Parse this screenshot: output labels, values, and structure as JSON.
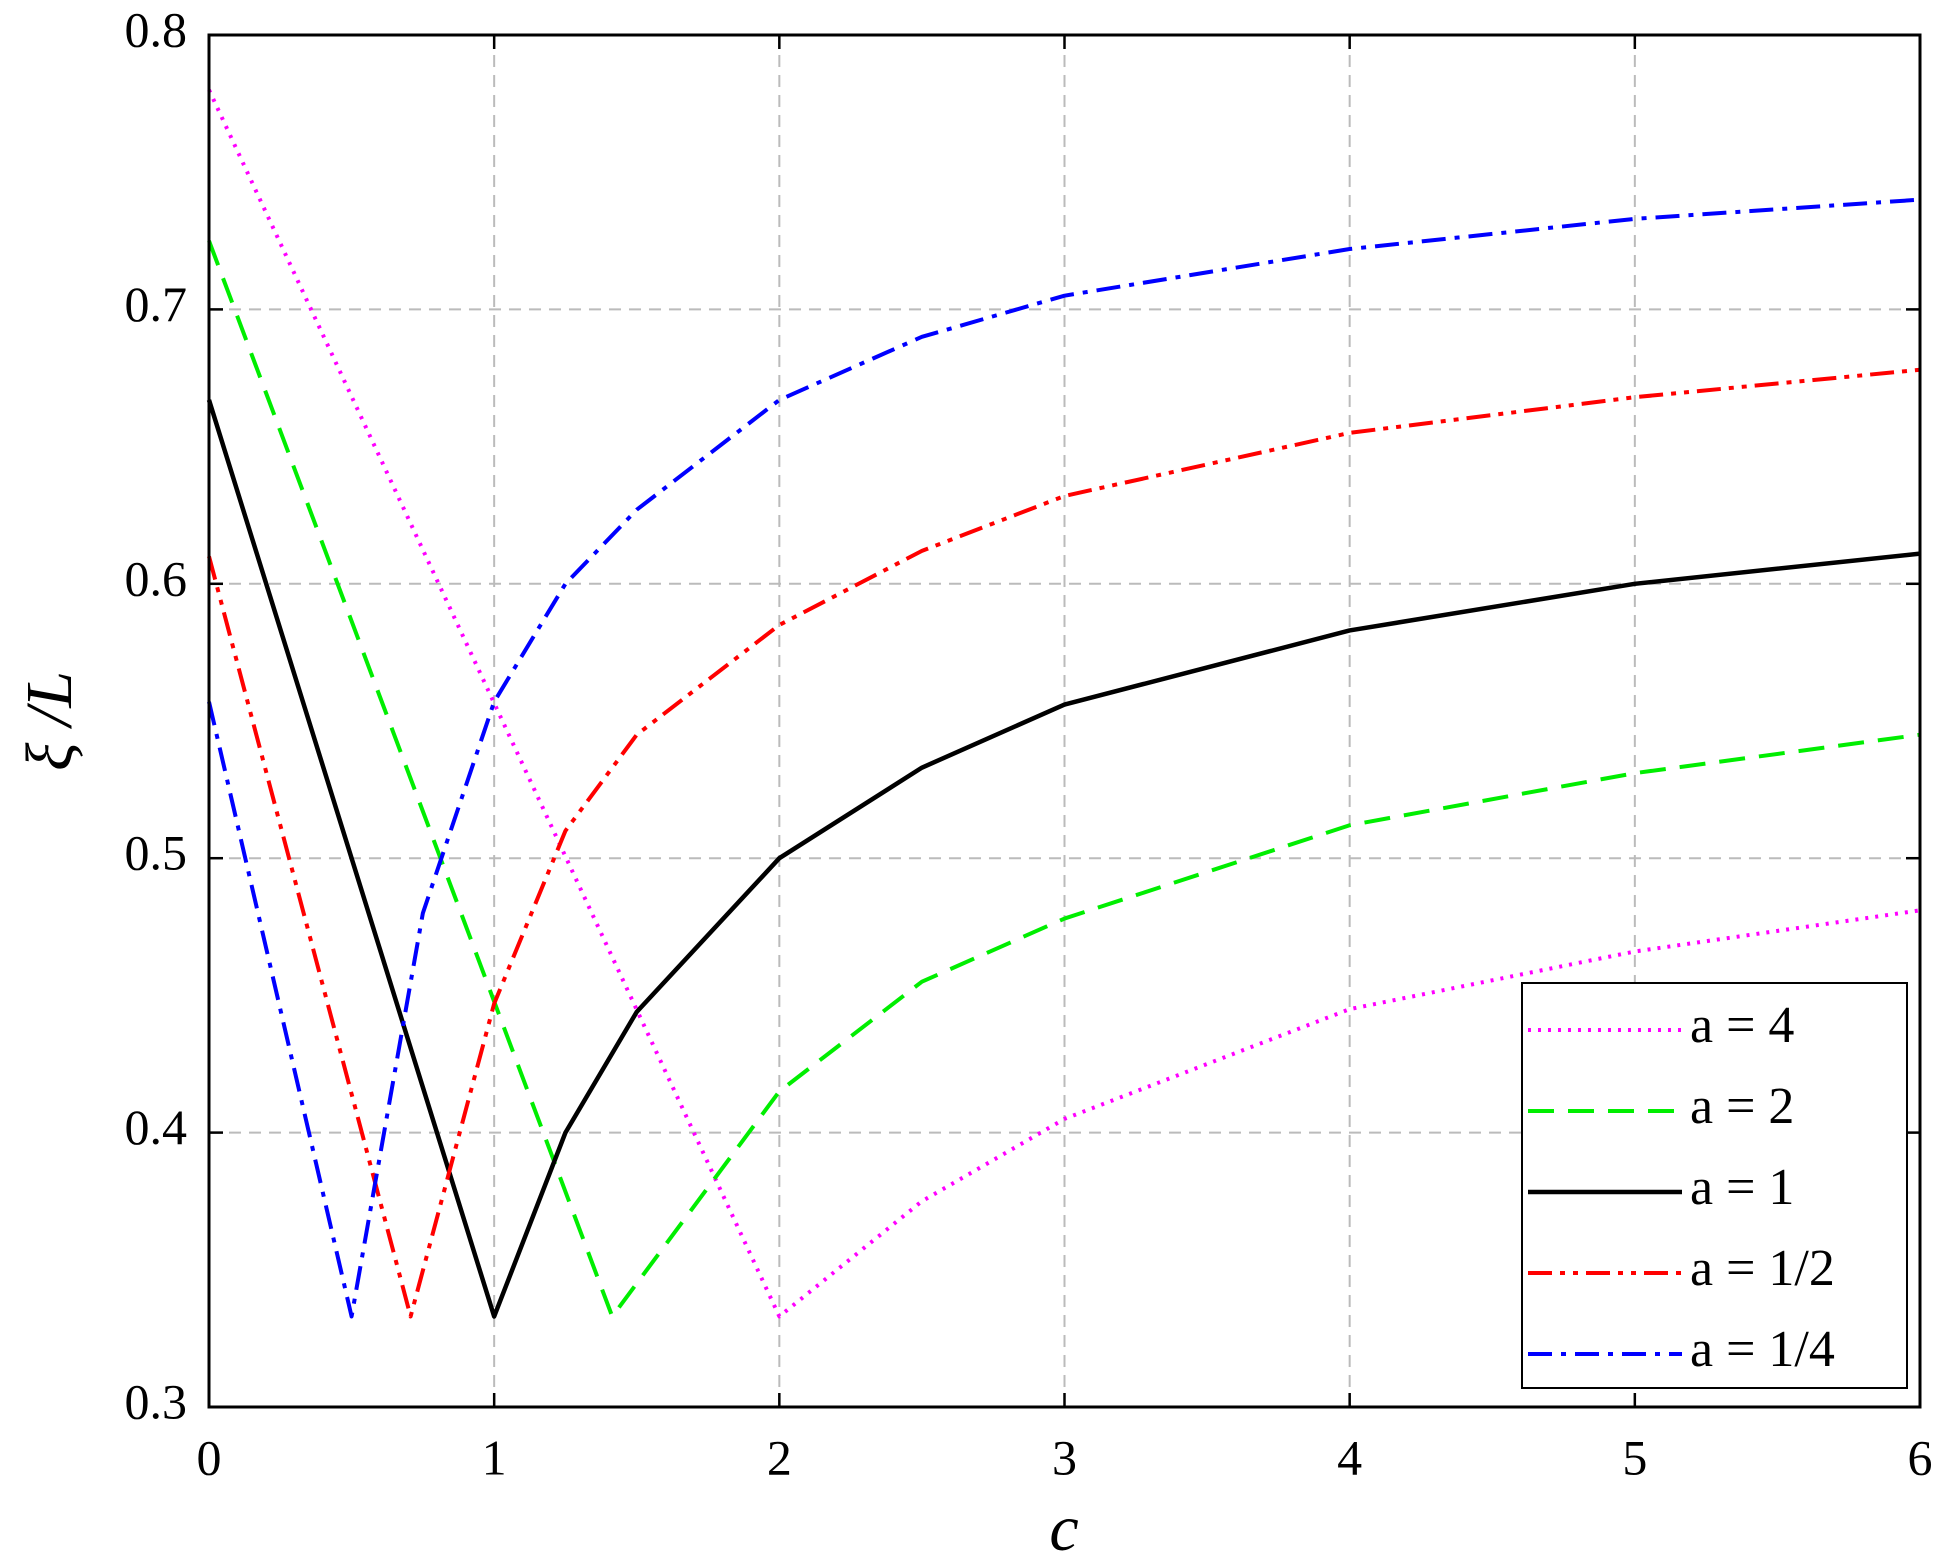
{
  "chart_data": {
    "type": "line",
    "xlabel": "c",
    "ylabel": "ξ /L",
    "xlim": [
      0,
      6
    ],
    "ylim": [
      0.3,
      0.8
    ],
    "xticks": [
      0,
      1,
      2,
      3,
      4,
      5,
      6
    ],
    "yticks": [
      0.3,
      0.4,
      0.5,
      0.6,
      0.7,
      0.8
    ],
    "grid": true,
    "legend": "lower right",
    "series": [
      {
        "name": "a = 4",
        "color": "#ff00ff",
        "style": "dotted",
        "x": [
          0,
          2,
          2.5,
          3,
          4,
          5,
          6
        ],
        "values": [
          0.78,
          0.333,
          0.375,
          0.405,
          0.445,
          0.466,
          0.481
        ]
      },
      {
        "name": "a = 2",
        "color": "#00ee00",
        "style": "dashed",
        "x": [
          0,
          1.414,
          2,
          2.5,
          3,
          4,
          5,
          6
        ],
        "values": [
          0.725,
          0.333,
          0.415,
          0.455,
          0.478,
          0.512,
          0.531,
          0.545
        ]
      },
      {
        "name": "a = 1",
        "color": "#000000",
        "style": "solid",
        "x": [
          0,
          1,
          1.25,
          1.5,
          2,
          2.5,
          3,
          4,
          5,
          6
        ],
        "values": [
          0.667,
          0.333,
          0.4,
          0.444,
          0.5,
          0.533,
          0.556,
          0.583,
          0.6,
          0.611
        ]
      },
      {
        "name": "a = 1/2",
        "color": "#ff0000",
        "style": "dash-dot-dot",
        "x": [
          0,
          0.707,
          1,
          1.25,
          1.5,
          2,
          2.5,
          3,
          4,
          5,
          6
        ],
        "values": [
          0.61,
          0.333,
          0.447,
          0.51,
          0.545,
          0.585,
          0.612,
          0.632,
          0.655,
          0.668,
          0.678
        ]
      },
      {
        "name": "a = 1/4",
        "color": "#0000ff",
        "style": "dash-dot",
        "x": [
          0,
          0.5,
          0.75,
          1,
          1.25,
          1.5,
          2,
          2.5,
          3,
          4,
          5,
          6
        ],
        "values": [
          0.557,
          0.333,
          0.48,
          0.557,
          0.6,
          0.627,
          0.667,
          0.69,
          0.705,
          0.722,
          0.733,
          0.74
        ]
      }
    ]
  }
}
